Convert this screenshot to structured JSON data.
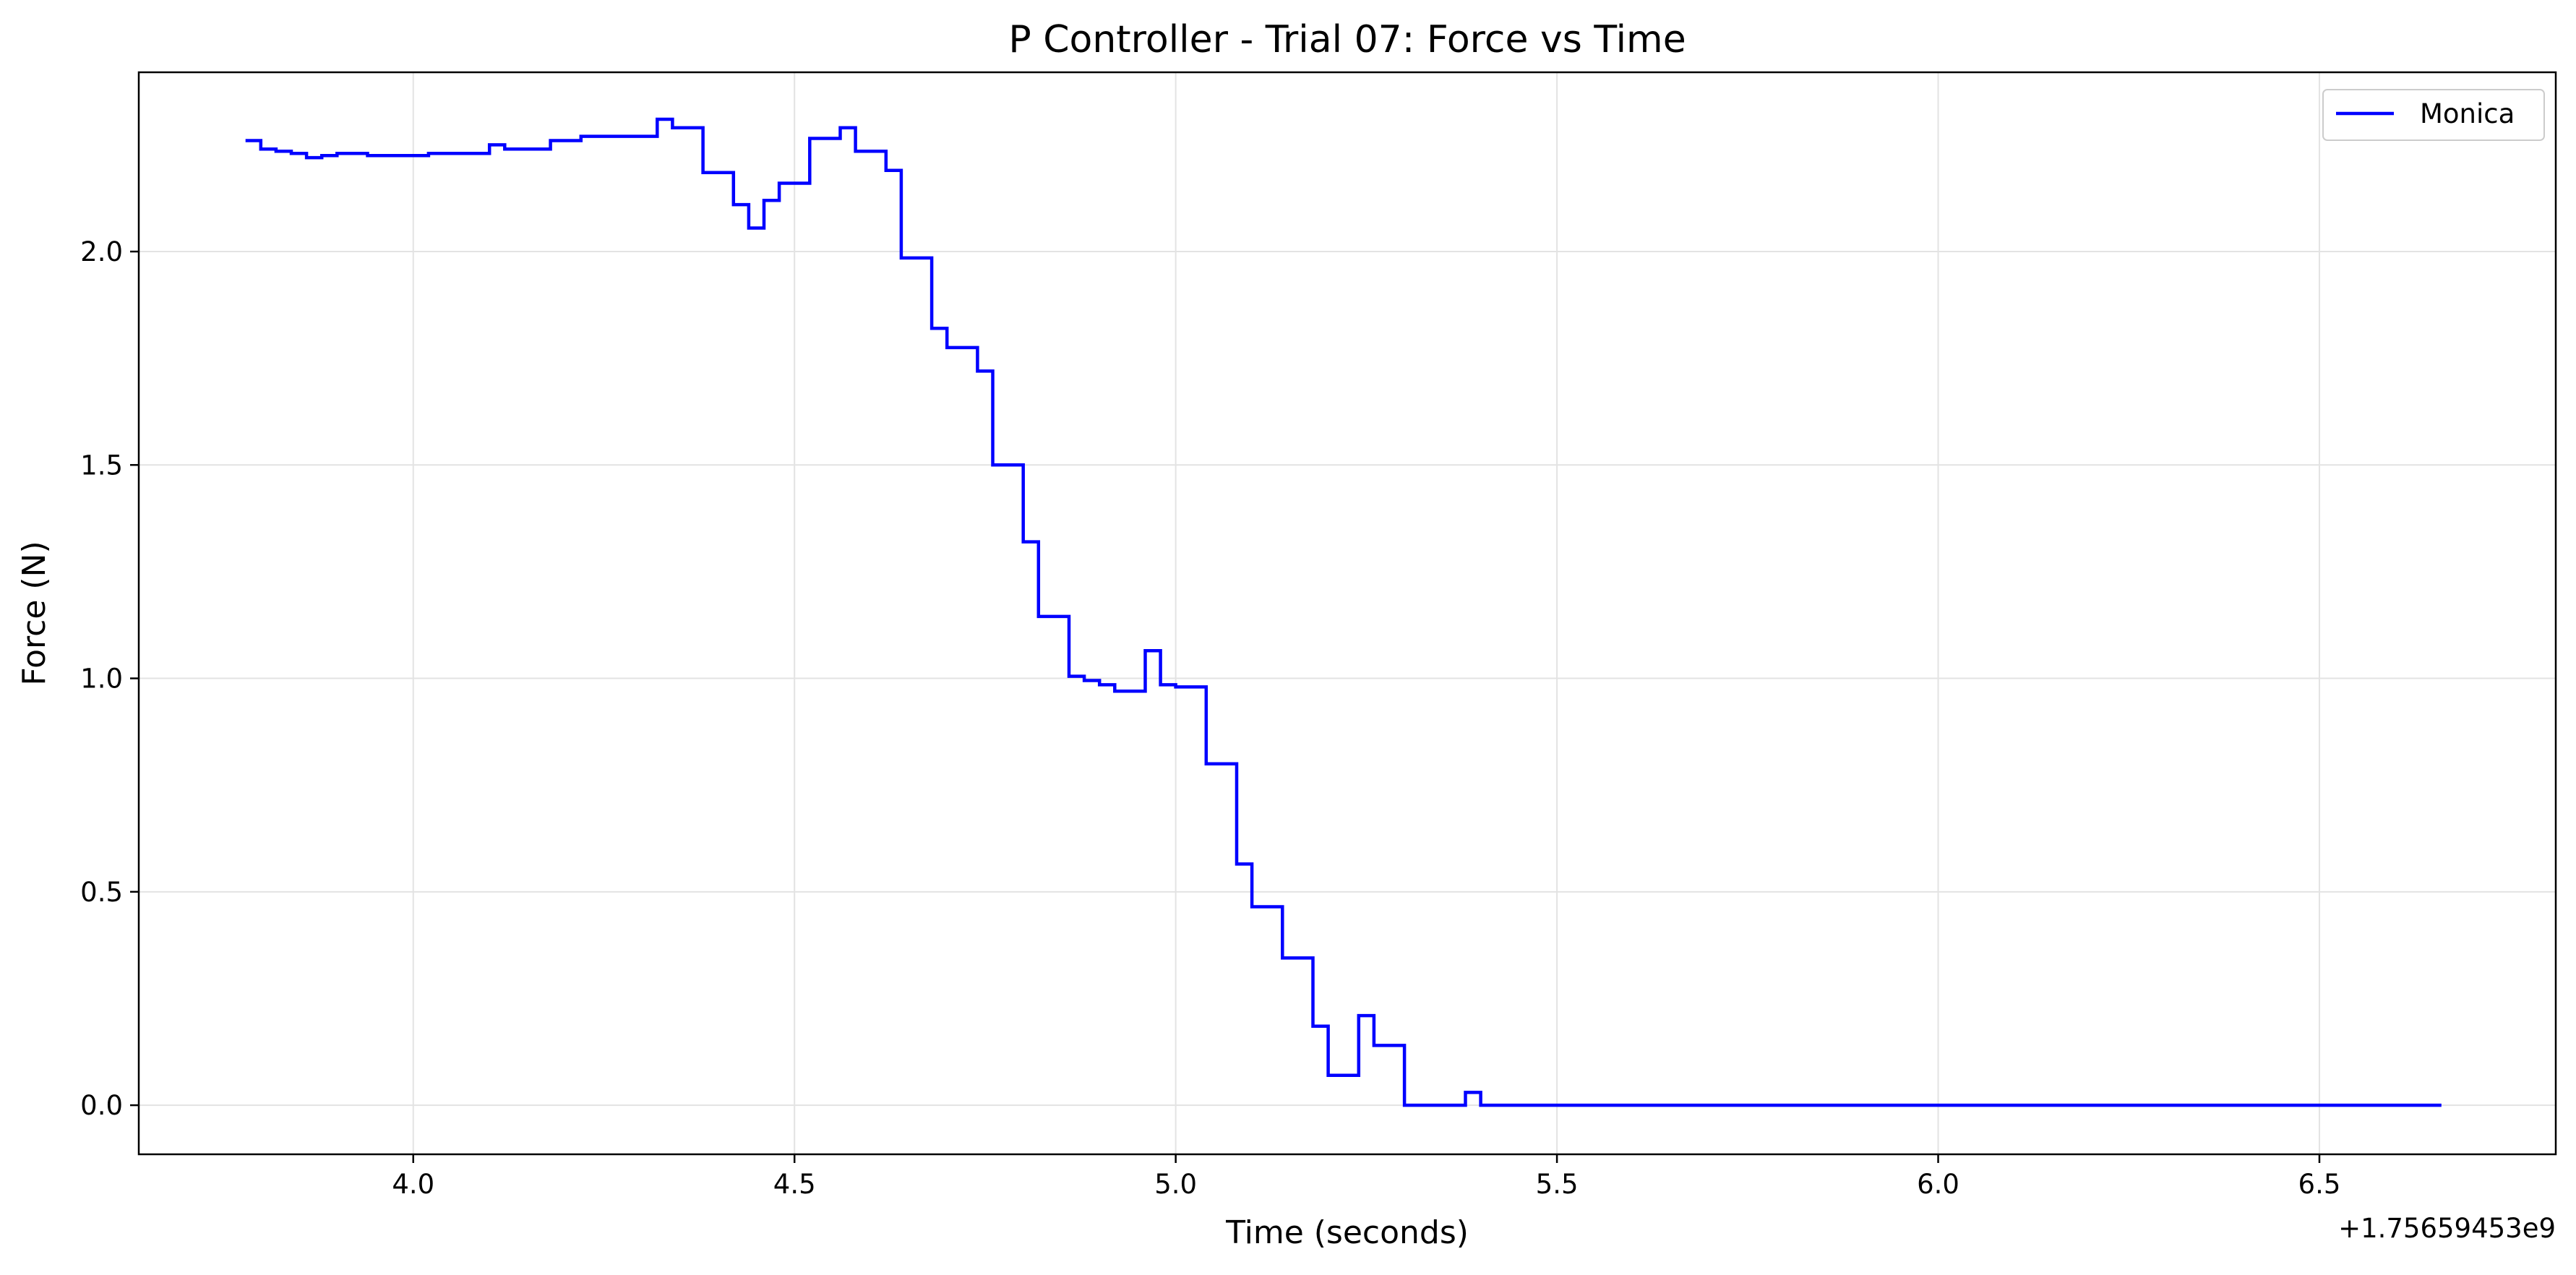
{
  "chart_data": {
    "type": "line",
    "title": "P Controller - Trial 07: Force vs Time",
    "xlabel": "Time (seconds)",
    "ylabel": "Force (N)",
    "x_offset_label": "+1.75659453e9",
    "xlim": [
      3.64,
      6.81
    ],
    "ylim": [
      -0.115,
      2.42
    ],
    "xticks": [
      4.0,
      4.5,
      5.0,
      5.5,
      6.0,
      6.5
    ],
    "xtick_labels": [
      "4.0",
      "4.5",
      "5.0",
      "5.5",
      "6.0",
      "6.5"
    ],
    "yticks": [
      0.0,
      0.5,
      1.0,
      1.5,
      2.0
    ],
    "ytick_labels": [
      "0.0",
      "0.5",
      "1.0",
      "1.5",
      "2.0"
    ],
    "grid": true,
    "legend_position": "top-right",
    "series": [
      {
        "name": "Monica",
        "color": "#0000ff",
        "step": true,
        "x": [
          3.78,
          3.8,
          3.82,
          3.84,
          3.86,
          3.88,
          3.9,
          3.92,
          3.94,
          3.96,
          3.98,
          4.0,
          4.02,
          4.04,
          4.06,
          4.08,
          4.1,
          4.12,
          4.14,
          4.16,
          4.18,
          4.2,
          4.22,
          4.24,
          4.26,
          4.28,
          4.3,
          4.32,
          4.34,
          4.36,
          4.38,
          4.4,
          4.42,
          4.44,
          4.46,
          4.48,
          4.5,
          4.52,
          4.54,
          4.56,
          4.58,
          4.6,
          4.62,
          4.64,
          4.66,
          4.68,
          4.7,
          4.72,
          4.74,
          4.76,
          4.78,
          4.8,
          4.82,
          4.84,
          4.86,
          4.88,
          4.9,
          4.92,
          4.94,
          4.96,
          4.98,
          5.0,
          5.02,
          5.04,
          5.06,
          5.08,
          5.1,
          5.12,
          5.14,
          5.16,
          5.18,
          5.2,
          5.22,
          5.24,
          5.26,
          5.28,
          5.3,
          5.32,
          5.34,
          5.36,
          5.38,
          5.4,
          6.66
        ],
        "y": [
          2.26,
          2.24,
          2.235,
          2.23,
          2.22,
          2.225,
          2.23,
          2.23,
          2.225,
          2.225,
          2.225,
          2.225,
          2.23,
          2.23,
          2.23,
          2.23,
          2.25,
          2.24,
          2.24,
          2.24,
          2.26,
          2.26,
          2.27,
          2.27,
          2.27,
          2.27,
          2.27,
          2.31,
          2.29,
          2.29,
          2.185,
          2.185,
          2.11,
          2.055,
          2.12,
          2.16,
          2.16,
          2.265,
          2.265,
          2.29,
          2.235,
          2.235,
          2.19,
          1.985,
          1.985,
          1.82,
          1.775,
          1.775,
          1.72,
          1.5,
          1.5,
          1.32,
          1.145,
          1.145,
          1.005,
          0.995,
          0.985,
          0.97,
          0.97,
          1.065,
          0.985,
          0.98,
          0.98,
          0.8,
          0.8,
          0.565,
          0.465,
          0.465,
          0.345,
          0.345,
          0.185,
          0.07,
          0.07,
          0.21,
          0.14,
          0.14,
          0.0,
          0.0,
          0.0,
          0.0,
          0.03,
          0.0,
          0.0
        ]
      }
    ]
  }
}
